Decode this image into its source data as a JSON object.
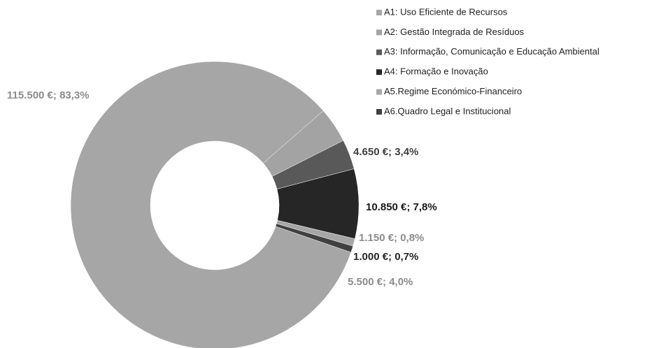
{
  "chart_data": {
    "type": "donut",
    "categories": [
      "A1: Uso Eficiente de Recursos",
      "A2: Gestão Integrada de Resíduos",
      "A3: Informação, Comunicação e Educação Ambiental",
      "A4: Formação e Inovação",
      "A5.Regime Económico-Financeiro",
      "A6.Quadro Legal e Institucional"
    ],
    "values": [
      115500,
      5500,
      4650,
      10850,
      1150,
      1000
    ],
    "value_labels": [
      "115.500 €; 83,3%",
      "5.500 €; 4,0%",
      "4.650 €; 3,4%",
      "10.850 €; 7,8%",
      "1.150 €; 0,8%",
      "1.000 €; 0,7%"
    ],
    "colors": [
      "#a6a6a6",
      "#a3a3a3",
      "#595959",
      "#262626",
      "#a6a6a6",
      "#404040"
    ],
    "legend": "top-right"
  }
}
